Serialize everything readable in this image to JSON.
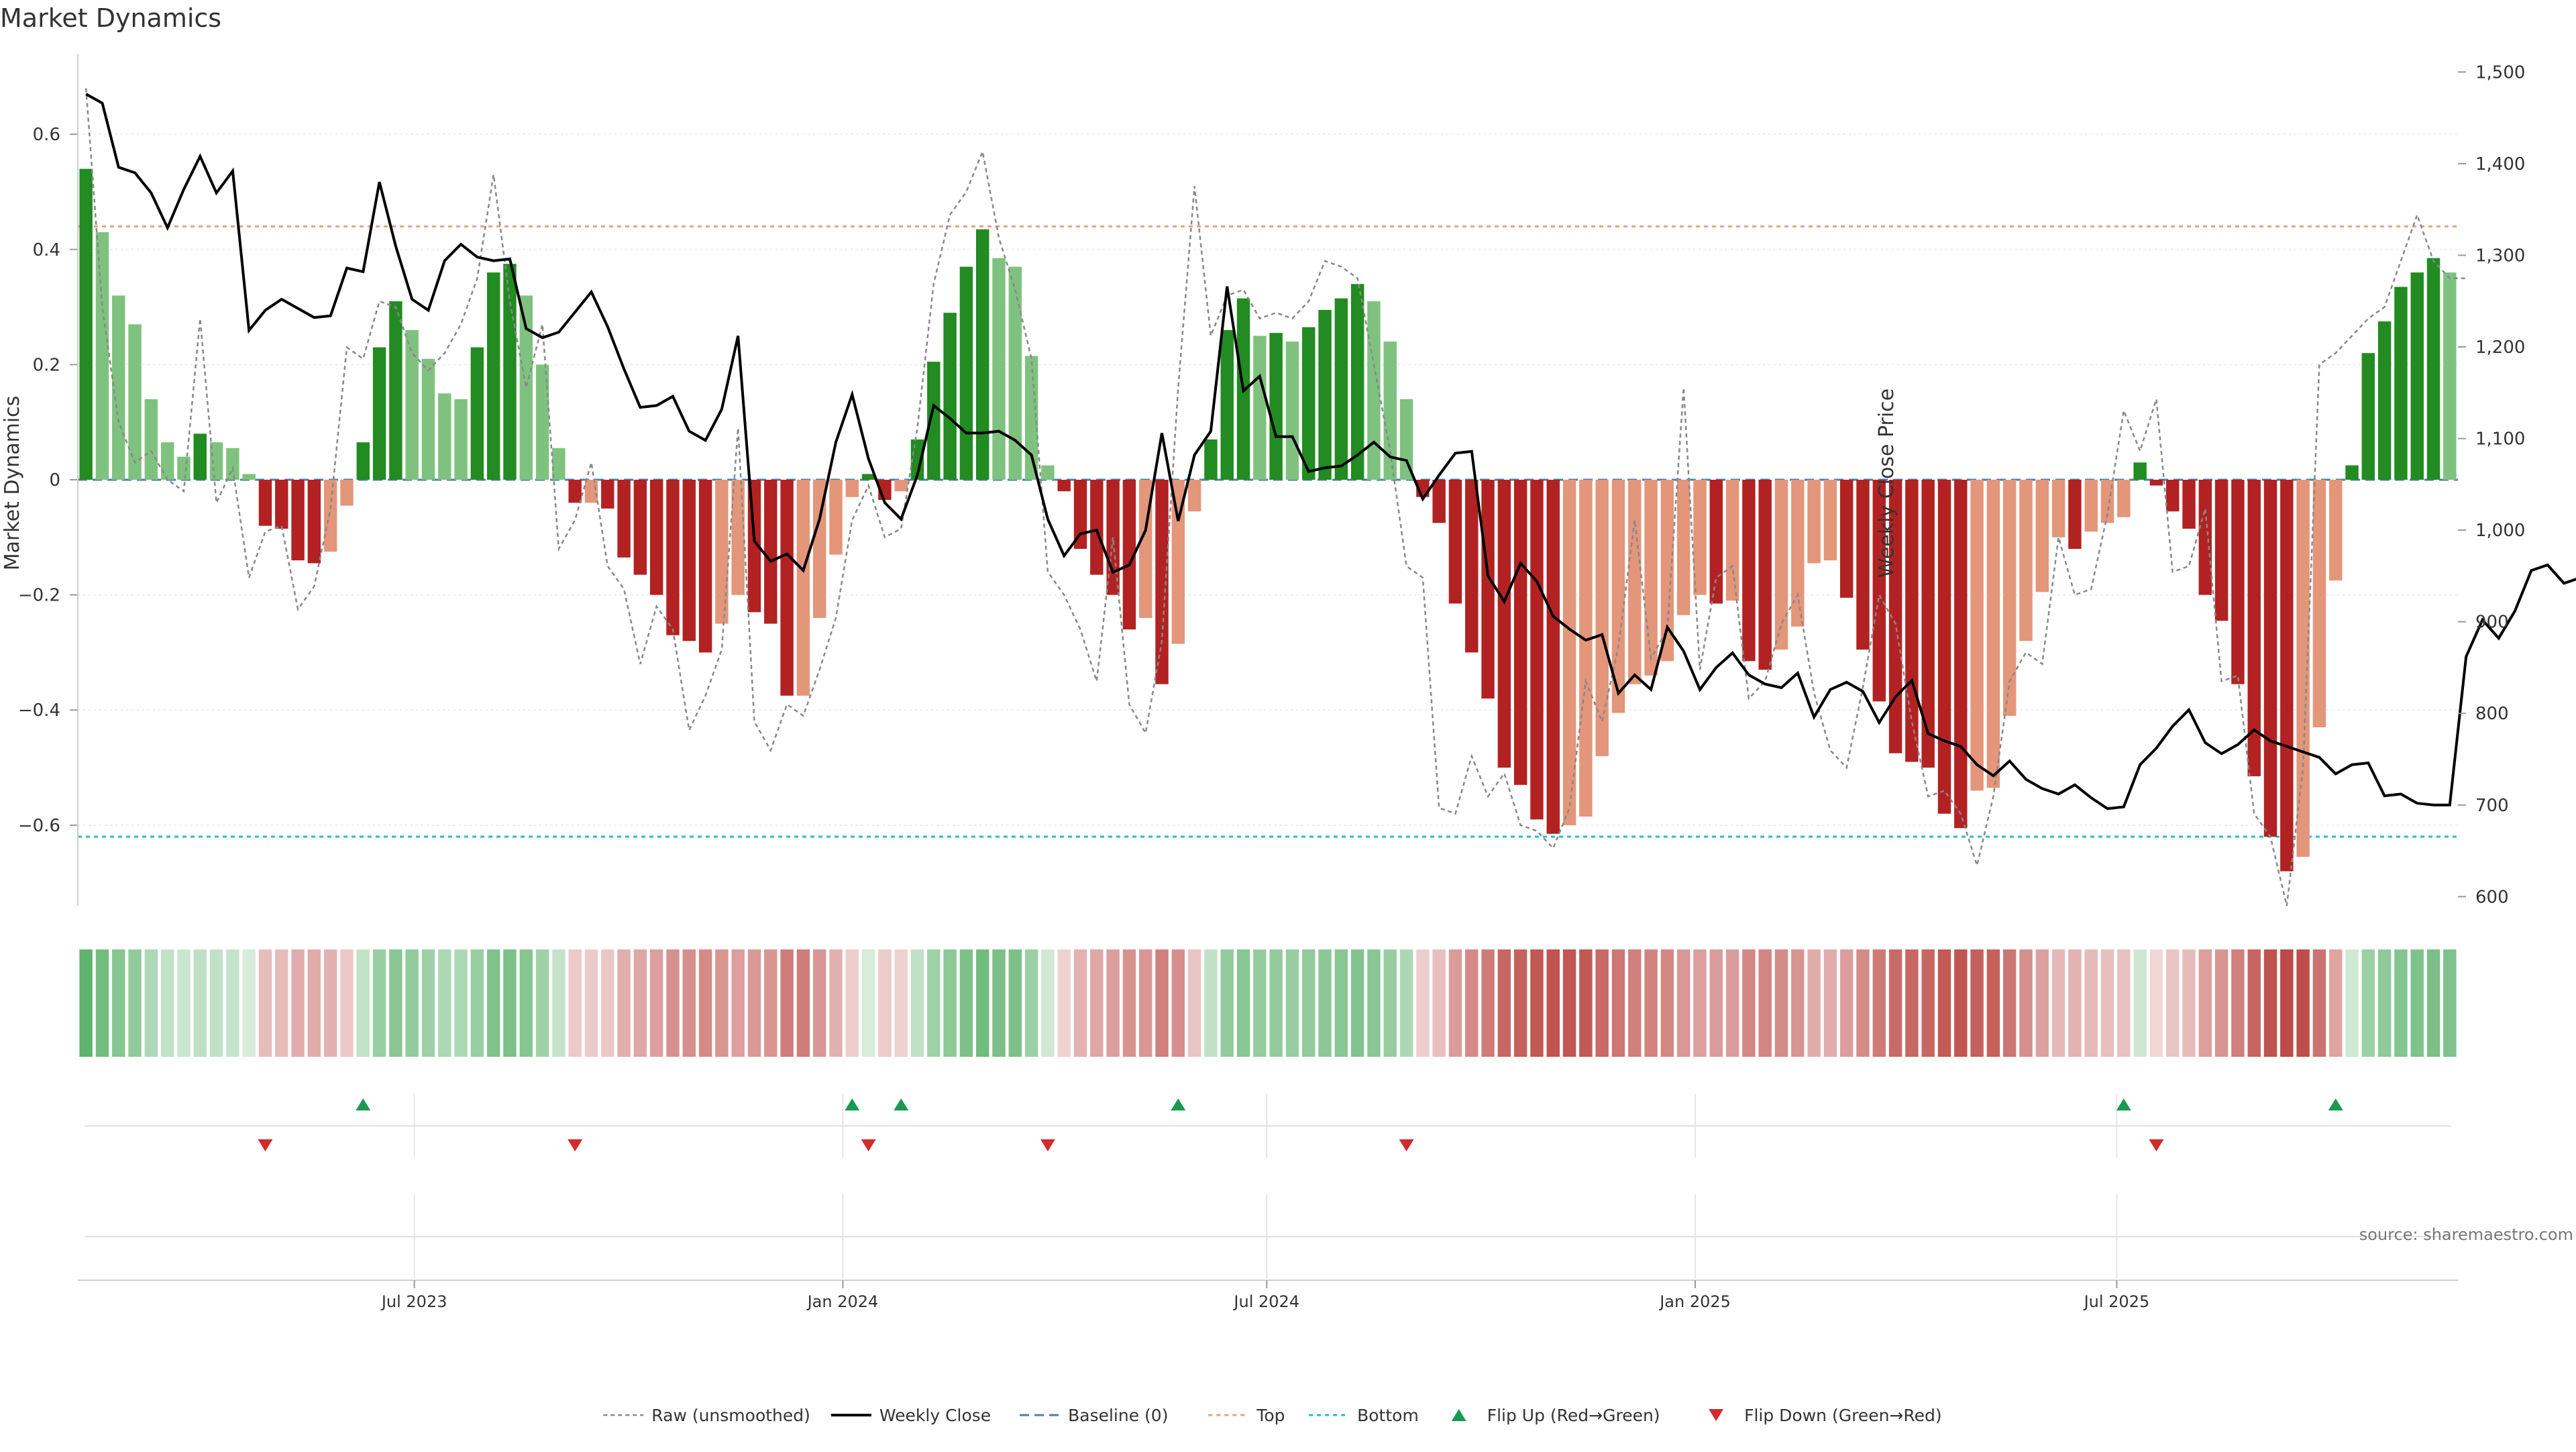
{
  "title": "Market Dynamics",
  "source_note": "source: sharemaestro.com",
  "chart_data": {
    "type": "bar",
    "title": "Market Dynamics",
    "ylabel": "Market Dynamics",
    "y2label": "Weekly Close Price",
    "ylim": [
      -0.74,
      0.74
    ],
    "y2lim": [
      590,
      1520
    ],
    "yticks": [
      -0.6,
      -0.4,
      -0.2,
      0,
      0.2,
      0.4,
      0.6
    ],
    "yticklabels": [
      "−0.6",
      "−0.4",
      "−0.2",
      "0",
      "0.2",
      "0.4",
      "0.6"
    ],
    "y2ticks": [
      600,
      700,
      800,
      900,
      1000,
      1100,
      1200,
      1300,
      1400,
      1500
    ],
    "y2ticklabels": [
      "600",
      "700",
      "800",
      "900",
      "1,000",
      "1,100",
      "1,200",
      "1,300",
      "1,400",
      "1,500"
    ],
    "top_level": 0.44,
    "bottom_level": -0.62,
    "x_start": "2023-02-10",
    "x_step_days": 7,
    "xticks": [
      {
        "date": "2023-07-01",
        "label": "Jul 2023"
      },
      {
        "date": "2024-01-01",
        "label": "Jan 2024"
      },
      {
        "date": "2024-07-01",
        "label": "Jul 2024"
      },
      {
        "date": "2025-01-01",
        "label": "Jan 2025"
      },
      {
        "date": "2025-07-01",
        "label": "Jul 2025"
      }
    ],
    "series": [
      {
        "name": "Market Dynamics",
        "values": [
          0.54,
          0.43,
          0.32,
          0.27,
          0.14,
          0.065,
          0.04,
          0.08,
          0.065,
          0.055,
          0.01,
          -0.08,
          -0.085,
          -0.14,
          -0.145,
          -0.125,
          -0.045,
          0.065,
          0.23,
          0.31,
          0.26,
          0.21,
          0.15,
          0.14,
          0.23,
          0.36,
          0.375,
          0.32,
          0.2,
          0.055,
          -0.04,
          -0.04,
          -0.05,
          -0.135,
          -0.165,
          -0.2,
          -0.27,
          -0.28,
          -0.3,
          -0.25,
          -0.2,
          -0.23,
          -0.25,
          -0.375,
          -0.375,
          -0.24,
          -0.13,
          -0.03,
          0.01,
          -0.035,
          -0.02,
          0.07,
          0.205,
          0.29,
          0.37,
          0.435,
          0.385,
          0.37,
          0.215,
          0.025,
          -0.02,
          -0.12,
          -0.165,
          -0.2,
          -0.26,
          -0.24,
          -0.355,
          -0.285,
          -0.055,
          0.07,
          0.26,
          0.315,
          0.25,
          0.255,
          0.24,
          0.265,
          0.295,
          0.315,
          0.34,
          0.31,
          0.24,
          0.14,
          -0.03,
          -0.075,
          -0.215,
          -0.3,
          -0.38,
          -0.5,
          -0.53,
          -0.59,
          -0.615,
          -0.6,
          -0.585,
          -0.48,
          -0.405,
          -0.355,
          -0.34,
          -0.315,
          -0.235,
          -0.2,
          -0.215,
          -0.21,
          -0.315,
          -0.33,
          -0.295,
          -0.255,
          -0.145,
          -0.14,
          -0.205,
          -0.295,
          -0.385,
          -0.475,
          -0.49,
          -0.5,
          -0.58,
          -0.605,
          -0.54,
          -0.535,
          -0.41,
          -0.28,
          -0.195,
          -0.1,
          -0.12,
          -0.09,
          -0.075,
          -0.065,
          0.03,
          -0.01,
          -0.055,
          -0.085,
          -0.2,
          -0.245,
          -0.355,
          -0.515,
          -0.62,
          -0.68,
          -0.655,
          -0.43,
          -0.175,
          0.025,
          0.22,
          0.275,
          0.335,
          0.36,
          0.385,
          0.36
        ]
      },
      {
        "name": "Raw (unsmoothed)",
        "values": [
          0.68,
          0.3,
          0.1,
          0.03,
          0.05,
          0.0,
          -0.02,
          0.28,
          -0.04,
          0.02,
          -0.17,
          -0.09,
          -0.08,
          -0.225,
          -0.185,
          -0.05,
          0.23,
          0.21,
          0.31,
          0.3,
          0.22,
          0.19,
          0.22,
          0.27,
          0.35,
          0.53,
          0.31,
          0.16,
          0.27,
          -0.12,
          -0.07,
          0.03,
          -0.15,
          -0.19,
          -0.32,
          -0.22,
          -0.26,
          -0.435,
          -0.375,
          -0.295,
          0.09,
          -0.42,
          -0.47,
          -0.39,
          -0.41,
          -0.33,
          -0.24,
          -0.07,
          -0.01,
          -0.1,
          -0.085,
          0.09,
          0.34,
          0.46,
          0.5,
          0.57,
          0.42,
          0.33,
          0.21,
          -0.16,
          -0.2,
          -0.26,
          -0.35,
          -0.1,
          -0.39,
          -0.44,
          -0.28,
          0.16,
          0.51,
          0.25,
          0.32,
          0.33,
          0.28,
          0.29,
          0.28,
          0.31,
          0.38,
          0.37,
          0.35,
          0.2,
          0.05,
          -0.15,
          -0.17,
          -0.57,
          -0.58,
          -0.48,
          -0.55,
          -0.51,
          -0.6,
          -0.61,
          -0.64,
          -0.57,
          -0.35,
          -0.42,
          -0.29,
          -0.07,
          -0.31,
          -0.26,
          0.16,
          -0.33,
          -0.17,
          -0.15,
          -0.38,
          -0.35,
          -0.25,
          -0.2,
          -0.37,
          -0.47,
          -0.5,
          -0.36,
          -0.2,
          -0.25,
          -0.42,
          -0.55,
          -0.54,
          -0.58,
          -0.67,
          -0.55,
          -0.35,
          -0.3,
          -0.32,
          -0.1,
          -0.2,
          -0.19,
          -0.06,
          0.12,
          0.05,
          0.14,
          -0.16,
          -0.15,
          -0.05,
          -0.35,
          -0.34,
          -0.58,
          -0.62,
          -0.74,
          -0.5,
          0.2,
          0.22,
          0.25,
          0.28,
          0.3,
          0.38,
          0.46,
          0.38,
          0.35,
          0.35
        ]
      },
      {
        "name": "Weekly Close",
        "values": [
          1476,
          1466,
          1396,
          1390,
          1368,
          1330,
          1372,
          1408,
          1368,
          1392,
          1218,
          1240,
          1252,
          1242,
          1232,
          1234,
          1286,
          1282,
          1380,
          1310,
          1252,
          1240,
          1294,
          1312,
          1298,
          1294,
          1296,
          1220,
          1210,
          1216,
          1238,
          1260,
          1222,
          1176,
          1134,
          1136,
          1146,
          1108,
          1098,
          1132,
          1212,
          988,
          966,
          974,
          956,
          1012,
          1096,
          1148,
          1078,
          1030,
          1012,
          1060,
          1136,
          1122,
          1106,
          1106,
          1108,
          1098,
          1082,
          1012,
          972,
          996,
          1000,
          954,
          962,
          1000,
          1106,
          1010,
          1082,
          1108,
          1266,
          1152,
          1168,
          1102,
          1102,
          1064,
          1068,
          1070,
          1082,
          1096,
          1080,
          1076,
          1034,
          1060,
          1084,
          1086,
          950,
          922,
          964,
          944,
          906,
          892,
          880,
          886,
          822,
          842,
          826,
          894,
          868,
          826,
          850,
          866,
          842,
          832,
          828,
          844,
          796,
          826,
          834,
          824,
          790,
          818,
          836,
          778,
          770,
          764,
          744,
          732,
          748,
          728,
          718,
          712,
          722,
          708,
          696,
          698,
          744,
          762,
          786,
          804,
          768,
          756,
          766,
          782,
          770,
          764,
          758,
          752,
          734,
          744,
          746,
          710,
          712,
          702,
          700,
          700,
          862,
          902,
          882,
          912,
          956,
          962,
          942,
          948,
          944
        ]
      }
    ],
    "markers": [
      {
        "name": "Flip Up (Red→Green)",
        "indices": [
          17,
          47,
          50,
          67,
          125,
          138
        ]
      },
      {
        "name": "Flip Down (Green→Red)",
        "indices": [
          11,
          30,
          48,
          59,
          81,
          127
        ]
      }
    ],
    "legend": {
      "placement": "bottom-center",
      "entries": [
        "Raw (unsmoothed)",
        "Weekly Close",
        "Baseline (0)",
        "Top",
        "Bottom",
        "Flip Up (Red→Green)",
        "Flip Down (Green→Red)"
      ]
    },
    "colors": {
      "strong_green": "#228b22",
      "light_green": "#7fc27f",
      "strong_red": "#b22222",
      "light_red": "#e3967a",
      "close": "#000000",
      "raw": "#888888",
      "baseline": "#4a7fb0",
      "top": "#e8a080",
      "bottom": "#20c0c0",
      "flip_up": "#1a9a50",
      "flip_down": "#d22b2b"
    }
  }
}
